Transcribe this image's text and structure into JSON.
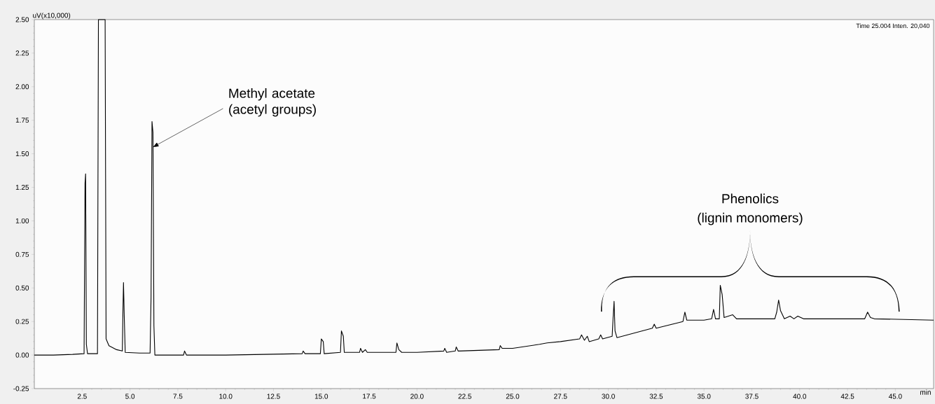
{
  "chart_data": {
    "type": "line",
    "xlabel": "min",
    "ylabel": "uV(x10,000)",
    "xlim": [
      0,
      47
    ],
    "ylim": [
      -0.25,
      2.5
    ],
    "xticks": [
      {
        "value": 2.5,
        "label": "2.5"
      },
      {
        "value": 5,
        "label": "5.0"
      },
      {
        "value": 7.5,
        "label": "7.5"
      },
      {
        "value": 10,
        "label": "10.0"
      },
      {
        "value": 12.5,
        "label": "12.5"
      },
      {
        "value": 15,
        "label": "15.0"
      },
      {
        "value": 17.5,
        "label": "17.5"
      },
      {
        "value": 20,
        "label": "20.0"
      },
      {
        "value": 22.5,
        "label": "22.5"
      },
      {
        "value": 25,
        "label": "25.0"
      },
      {
        "value": 27.5,
        "label": "27.5"
      },
      {
        "value": 30,
        "label": "30.0"
      },
      {
        "value": 32.5,
        "label": "32.5"
      },
      {
        "value": 35,
        "label": "35.0"
      },
      {
        "value": 37.5,
        "label": "37.5"
      },
      {
        "value": 40,
        "label": "40.0"
      },
      {
        "value": 42.5,
        "label": "42.5"
      },
      {
        "value": 45,
        "label": "45.0"
      }
    ],
    "yticks": [
      {
        "value": -0.25,
        "label": "-0.25"
      },
      {
        "value": 0,
        "label": "0.00"
      },
      {
        "value": 0.25,
        "label": "0.25"
      },
      {
        "value": 0.5,
        "label": "0.50"
      },
      {
        "value": 0.75,
        "label": "0.75"
      },
      {
        "value": 1,
        "label": "1.00"
      },
      {
        "value": 1.25,
        "label": "1.25"
      },
      {
        "value": 1.5,
        "label": "1.50"
      },
      {
        "value": 1.75,
        "label": "1.75"
      },
      {
        "value": 2,
        "label": "2.00"
      },
      {
        "value": 2.25,
        "label": "2.25"
      },
      {
        "value": 2.5,
        "label": "2.50"
      }
    ],
    "x": [
      0,
      1.0,
      2.0,
      2.6,
      2.65,
      2.68,
      2.72,
      2.78,
      3.3,
      3.35,
      3.7,
      3.75,
      3.9,
      4.3,
      4.6,
      4.63,
      4.66,
      4.7,
      4.75,
      5.5,
      6.05,
      6.1,
      6.15,
      6.2,
      6.25,
      6.3,
      7.8,
      7.85,
      7.95,
      9.0,
      10,
      12,
      14.0,
      14.05,
      14.15,
      14.95,
      15.0,
      15.1,
      15.15,
      16.0,
      16.05,
      16.15,
      16.2,
      17.0,
      17.05,
      17.15,
      17.3,
      17.4,
      18.9,
      18.95,
      19.05,
      19.2,
      20,
      21.4,
      21.45,
      21.55,
      22.0,
      22.05,
      22.15,
      24.3,
      24.35,
      24.45,
      25,
      26.4,
      26.8,
      27.5,
      28.0,
      28.5,
      28.6,
      28.75,
      28.9,
      29.0,
      29.5,
      29.6,
      29.7,
      30.2,
      30.25,
      30.3,
      30.35,
      30.45,
      31,
      32.3,
      32.4,
      32.5,
      33.9,
      34.0,
      34.1,
      35.0,
      35.4,
      35.5,
      35.6,
      35.8,
      35.85,
      35.95,
      36.05,
      36.5,
      36.7,
      38.7,
      38.8,
      38.9,
      39.0,
      39.2,
      39.5,
      39.7,
      39.9,
      40.2,
      43.4,
      43.55,
      43.7,
      43.9,
      47
    ],
    "values": [
      0.0,
      0.0,
      0.005,
      0.01,
      1.28,
      1.35,
      0.08,
      0.01,
      0.01,
      2.5,
      2.5,
      0.12,
      0.07,
      0.04,
      0.03,
      0.32,
      0.54,
      0.29,
      0.02,
      0.015,
      0.015,
      0.43,
      1.74,
      1.66,
      0.22,
      0.0,
      0.0,
      0.03,
      0.0,
      0.0,
      0.0,
      0.005,
      0.01,
      0.03,
      0.01,
      0.01,
      0.12,
      0.1,
      0.01,
      0.02,
      0.18,
      0.14,
      0.02,
      0.02,
      0.05,
      0.02,
      0.04,
      0.02,
      0.02,
      0.09,
      0.04,
      0.02,
      0.02,
      0.03,
      0.05,
      0.02,
      0.03,
      0.06,
      0.03,
      0.04,
      0.07,
      0.05,
      0.05,
      0.08,
      0.09,
      0.1,
      0.11,
      0.12,
      0.15,
      0.11,
      0.14,
      0.1,
      0.12,
      0.15,
      0.12,
      0.14,
      0.28,
      0.4,
      0.18,
      0.13,
      0.15,
      0.2,
      0.23,
      0.2,
      0.25,
      0.32,
      0.26,
      0.26,
      0.27,
      0.34,
      0.27,
      0.27,
      0.52,
      0.45,
      0.28,
      0.3,
      0.27,
      0.27,
      0.32,
      0.41,
      0.33,
      0.27,
      0.29,
      0.27,
      0.29,
      0.27,
      0.27,
      0.32,
      0.28,
      0.27,
      0.26
    ],
    "color": "#000000",
    "annotations": [
      {
        "text": "Methyl acetate (acetyl groups)",
        "x": 6.2,
        "y": 1.55
      },
      "Phenolics",
      "(lignin monomers)",
      "Time 25.004 Inten. 20,040"
    ]
  }
}
